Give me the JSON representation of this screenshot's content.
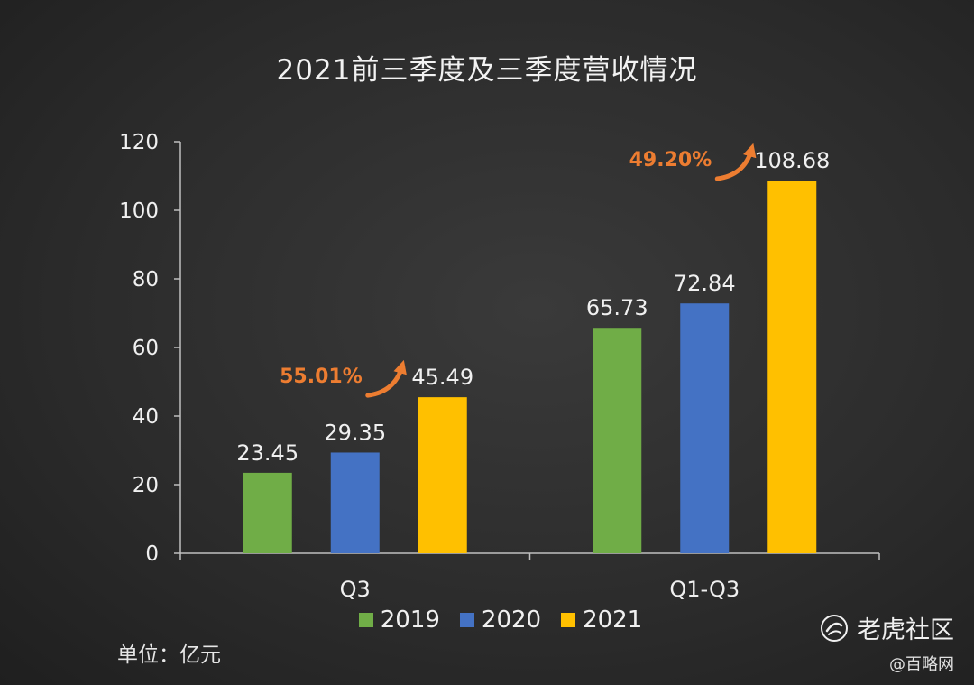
{
  "title": "2021前三季度及三季度营收情况",
  "unit_label": "单位：亿元",
  "watermark": {
    "brand": "老虎社区",
    "source": "@百略网"
  },
  "colors": {
    "2019": "#70ad47",
    "2020": "#4472c4",
    "2021": "#ffc000",
    "growth": "#ed7d31"
  },
  "legend": [
    {
      "label": "2019",
      "color": "#70ad47"
    },
    {
      "label": "2020",
      "color": "#4472c4"
    },
    {
      "label": "2021",
      "color": "#ffc000"
    }
  ],
  "chart_data": {
    "type": "bar",
    "title": "2021前三季度及三季度营收情况",
    "categories": [
      "Q3",
      "Q1-Q3"
    ],
    "series": [
      {
        "name": "2019",
        "values": [
          23.45,
          65.73
        ]
      },
      {
        "name": "2020",
        "values": [
          29.35,
          72.84
        ]
      },
      {
        "name": "2021",
        "values": [
          45.49,
          108.68
        ]
      }
    ],
    "data_labels": [
      [
        "23.45",
        "65.73"
      ],
      [
        "29.35",
        "72.84"
      ],
      [
        "45.49",
        "108.68"
      ]
    ],
    "growth_annotations": [
      "55.01%",
      "49.20%"
    ],
    "yticks": [
      "0",
      "20",
      "40",
      "60",
      "80",
      "100",
      "120"
    ],
    "ylim": [
      0,
      120
    ],
    "ylabel": "单位：亿元",
    "xlabel": "",
    "legend_position": "bottom",
    "grid": false
  }
}
